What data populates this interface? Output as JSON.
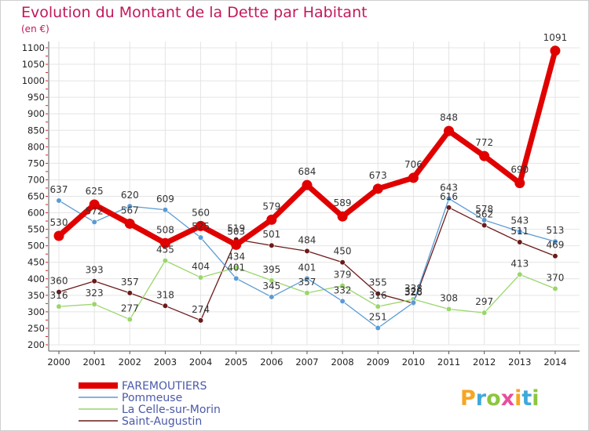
{
  "chart_data": {
    "type": "line",
    "title": "Evolution du Montant de la Dette par Habitant",
    "subtitle": "(en €)",
    "xlabel": "",
    "ylabel": "",
    "ylim": [
      200,
      1100
    ],
    "yticks": [
      200,
      250,
      300,
      350,
      400,
      450,
      500,
      550,
      600,
      650,
      700,
      750,
      800,
      850,
      900,
      950,
      1000,
      1050,
      1100
    ],
    "categories": [
      "2000",
      "2001",
      "2002",
      "2003",
      "2004",
      "2005",
      "2006",
      "2007",
      "2008",
      "2009",
      "2010",
      "2011",
      "2012",
      "2013",
      "2014"
    ],
    "grid": true,
    "legend_position": "bottom-left",
    "series": [
      {
        "name": "FAREMOUTIERS",
        "color": "#e00000",
        "values": [
          530,
          625,
          567,
          508,
          560,
          503,
          579,
          684,
          589,
          673,
          706,
          848,
          772,
          690,
          1091
        ]
      },
      {
        "name": "Pommeuse",
        "color": "#5a9bd5",
        "values": [
          637,
          572,
          620,
          609,
          525,
          401,
          345,
          401,
          332,
          251,
          328,
          643,
          578,
          543,
          513
        ]
      },
      {
        "name": "La Celle-sur-Morin",
        "color": "#9ad66a",
        "values": [
          316,
          323,
          277,
          455,
          404,
          434,
          395,
          357,
          379,
          316,
          338,
          308,
          297,
          413,
          370
        ]
      },
      {
        "name": "Saint-Augustin",
        "color": "#6b1a1a",
        "values": [
          360,
          393,
          357,
          318,
          274,
          519,
          501,
          484,
          450,
          355,
          326,
          616,
          562,
          511,
          469
        ]
      }
    ]
  },
  "logo": {
    "letters": [
      "P",
      "r",
      "o",
      "x",
      "i",
      "t",
      "i"
    ],
    "colors": [
      "#f5a623",
      "#3fa9dc",
      "#8cc63f",
      "#e94e9b",
      "#f5a623",
      "#3fa9dc",
      "#8cc63f"
    ]
  }
}
